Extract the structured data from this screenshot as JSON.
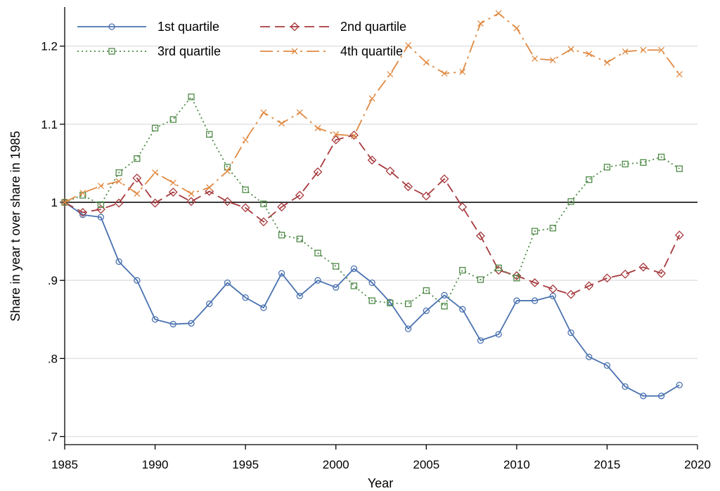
{
  "chart_data": {
    "type": "line",
    "title": "",
    "xlabel": "Year",
    "ylabel": "Share in year t over share in 1985",
    "xlim": [
      1985,
      2020
    ],
    "ylim": [
      0.7,
      1.25
    ],
    "x_ticks": [
      1985,
      1990,
      1995,
      2000,
      2005,
      2010,
      2015,
      2020
    ],
    "x_tick_labels": [
      "1985",
      "1990",
      "1995",
      "2000",
      "2005",
      "2010",
      "2015",
      "2020"
    ],
    "y_ticks": [
      0.7,
      0.8,
      0.9,
      1.0,
      1.1,
      1.2
    ],
    "y_tick_labels": [
      ".7",
      ".8",
      ".9",
      "1",
      "1.1",
      "1.2"
    ],
    "grid": "horizontal",
    "reference_line": 1.0,
    "legend_position": "top-left",
    "x": [
      1985,
      1986,
      1987,
      1988,
      1989,
      1990,
      1991,
      1992,
      1993,
      1994,
      1995,
      1996,
      1997,
      1998,
      1999,
      2000,
      2001,
      2002,
      2003,
      2004,
      2005,
      2006,
      2007,
      2008,
      2009,
      2010,
      2011,
      2012,
      2013,
      2014,
      2015,
      2016,
      2017,
      2018,
      2019
    ],
    "series": [
      {
        "name": "1st quartile",
        "color": "#4a72b0",
        "marker": "circle",
        "dash": "solid",
        "values": [
          1.0,
          0.984,
          0.981,
          0.924,
          0.9,
          0.85,
          0.844,
          0.845,
          0.87,
          0.897,
          0.878,
          0.865,
          0.909,
          0.88,
          0.9,
          0.891,
          0.915,
          0.897,
          0.872,
          0.838,
          0.861,
          0.881,
          0.863,
          0.823,
          0.831,
          0.874,
          0.874,
          0.88,
          0.833,
          0.802,
          0.791,
          0.764,
          0.752,
          0.752,
          0.766
        ]
      },
      {
        "name": "2nd quartile",
        "color": "#a63a3e",
        "marker": "diamond",
        "dash": "dashed",
        "values": [
          1.0,
          0.987,
          0.991,
          0.999,
          1.031,
          0.999,
          1.013,
          1.001,
          1.014,
          1.001,
          0.993,
          0.975,
          0.994,
          1.009,
          1.039,
          1.08,
          1.086,
          1.054,
          1.04,
          1.02,
          1.008,
          1.03,
          0.994,
          0.957,
          0.913,
          0.906,
          0.897,
          0.889,
          0.882,
          0.893,
          0.903,
          0.908,
          0.917,
          0.909,
          0.958
        ]
      },
      {
        "name": "3rd quartile",
        "color": "#4e8a46",
        "marker": "square",
        "dash": "dotted",
        "values": [
          1.0,
          1.009,
          0.997,
          1.038,
          1.056,
          1.095,
          1.106,
          1.135,
          1.087,
          1.045,
          1.016,
          0.998,
          0.958,
          0.953,
          0.935,
          0.918,
          0.893,
          0.874,
          0.871,
          0.87,
          0.887,
          0.867,
          0.913,
          0.901,
          0.916,
          0.903,
          0.963,
          0.967,
          1.001,
          1.029,
          1.045,
          1.049,
          1.051,
          1.058,
          1.043
        ]
      },
      {
        "name": "4th quartile",
        "color": "#e08a43",
        "marker": "x",
        "dash": "longdash-dot",
        "values": [
          1.0,
          1.012,
          1.021,
          1.027,
          1.011,
          1.038,
          1.025,
          1.011,
          1.019,
          1.04,
          1.08,
          1.115,
          1.101,
          1.115,
          1.095,
          1.087,
          1.085,
          1.133,
          1.164,
          1.201,
          1.179,
          1.165,
          1.167,
          1.229,
          1.242,
          1.223,
          1.184,
          1.182,
          1.196,
          1.19,
          1.179,
          1.193,
          1.195,
          1.195,
          1.164
        ]
      }
    ]
  }
}
